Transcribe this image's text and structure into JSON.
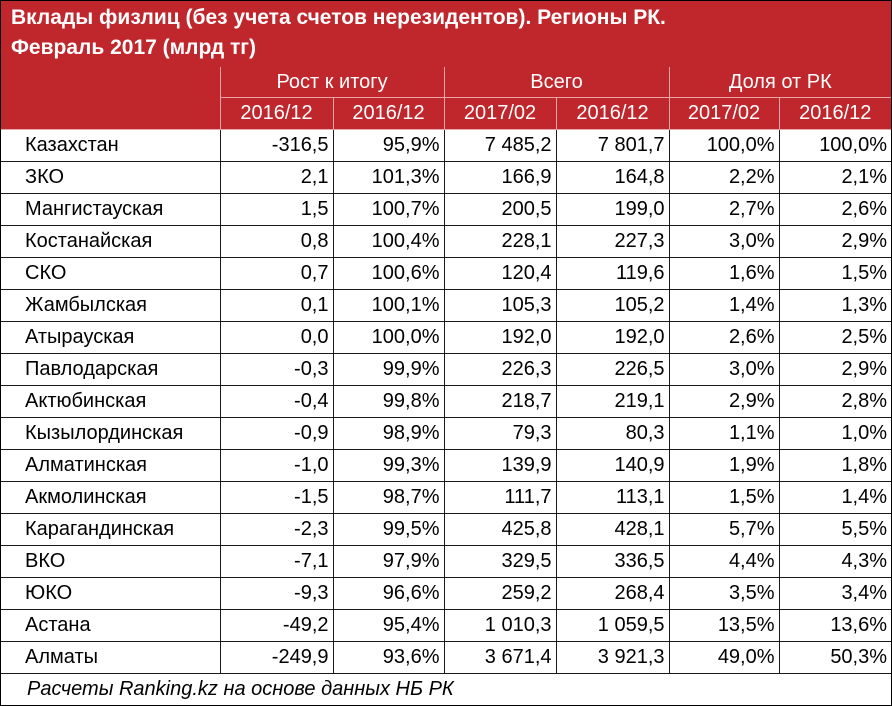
{
  "title": {
    "line1": "Вклады физлиц (без учета счетов нерезидентов). Регионы РК.",
    "line2": "Февраль 2017 (млрд тг)"
  },
  "headers": {
    "groups": [
      "Рост к итогу",
      "Всего",
      "Доля от РК"
    ],
    "periods": [
      "2016/12",
      "2016/12",
      "2017/02",
      "2016/12",
      "2017/02",
      "2016/12"
    ]
  },
  "rows": [
    [
      "Казахстан",
      "-316,5",
      "95,9%",
      "7 485,2",
      "7 801,7",
      "100,0%",
      "100,0%"
    ],
    [
      "ЗКО",
      "2,1",
      "101,3%",
      "166,9",
      "164,8",
      "2,2%",
      "2,1%"
    ],
    [
      "Мангистауская",
      "1,5",
      "100,7%",
      "200,5",
      "199,0",
      "2,7%",
      "2,6%"
    ],
    [
      "Костанайская",
      "0,8",
      "100,4%",
      "228,1",
      "227,3",
      "3,0%",
      "2,9%"
    ],
    [
      "СКО",
      "0,7",
      "100,6%",
      "120,4",
      "119,6",
      "1,6%",
      "1,5%"
    ],
    [
      "Жамбылская",
      "0,1",
      "100,1%",
      "105,3",
      "105,2",
      "1,4%",
      "1,3%"
    ],
    [
      "Атырауская",
      "0,0",
      "100,0%",
      "192,0",
      "192,0",
      "2,6%",
      "2,5%"
    ],
    [
      "Павлодарская",
      "-0,3",
      "99,9%",
      "226,3",
      "226,5",
      "3,0%",
      "2,9%"
    ],
    [
      "Актюбинская",
      "-0,4",
      "99,8%",
      "218,7",
      "219,1",
      "2,9%",
      "2,8%"
    ],
    [
      "Кызылординская",
      "-0,9",
      "98,9%",
      "79,3",
      "80,3",
      "1,1%",
      "1,0%"
    ],
    [
      "Алматинская",
      "-1,0",
      "99,3%",
      "139,9",
      "140,9",
      "1,9%",
      "1,8%"
    ],
    [
      "Акмолинская",
      "-1,5",
      "98,7%",
      "111,7",
      "113,1",
      "1,5%",
      "1,4%"
    ],
    [
      "Карагандинская",
      "-2,3",
      "99,5%",
      "425,8",
      "428,1",
      "5,7%",
      "5,5%"
    ],
    [
      "ВКО",
      "-7,1",
      "97,9%",
      "329,5",
      "336,5",
      "4,4%",
      "4,3%"
    ],
    [
      "ЮКО",
      "-9,3",
      "96,6%",
      "259,2",
      "268,4",
      "3,5%",
      "3,4%"
    ],
    [
      "Астана",
      "-49,2",
      "95,4%",
      "1 010,3",
      "1 059,5",
      "13,5%",
      "13,6%"
    ],
    [
      "Алматы",
      "-249,9",
      "93,6%",
      "3 671,4",
      "3 921,3",
      "49,0%",
      "50,3%"
    ]
  ],
  "source": "Расчеты Ranking.kz на основе данных НБ РК",
  "colors": {
    "header_bg": "#c0272d",
    "header_text": "#ffffff",
    "grid": "#1a1a1a"
  }
}
